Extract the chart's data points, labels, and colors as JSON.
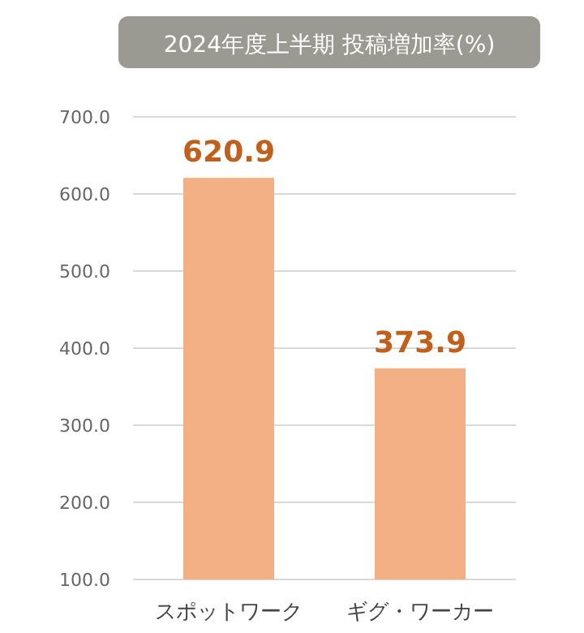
{
  "chart_data": {
    "type": "bar",
    "title": "2024年度上半期  投稿増加率(%)",
    "categories": [
      "スポットワーク",
      "ギグ・ワーカー"
    ],
    "values": [
      620.9,
      373.9
    ],
    "color": "#f2b084",
    "ylim": [
      100,
      700
    ],
    "yticks": [
      {
        "value": 100,
        "label": "100.0"
      },
      {
        "value": 200,
        "label": "200.0"
      },
      {
        "value": 300,
        "label": "300.0"
      },
      {
        "value": 400,
        "label": "400.0"
      },
      {
        "value": 500,
        "label": "500.0"
      },
      {
        "value": 600,
        "label": "600.0"
      },
      {
        "value": 700,
        "label": "700.0"
      }
    ],
    "grid": "y",
    "data_labels": true
  }
}
